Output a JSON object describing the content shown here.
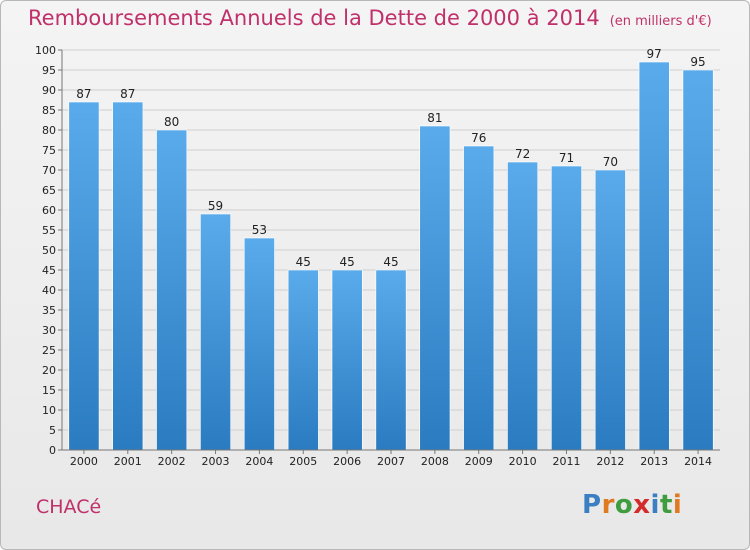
{
  "title": {
    "main": "Remboursements Annuels de la Dette de 2000 à 2014",
    "unit": "(en milliers d'€)"
  },
  "commune": "CHACé",
  "logo": {
    "letters": [
      "P",
      "r",
      "o",
      "x",
      "i",
      "t",
      "i"
    ],
    "colors": [
      "#3a7fc4",
      "#e07a20",
      "#3f9c3f",
      "#d42a2a",
      "#3a7fc4",
      "#3f9c3f",
      "#e07a20"
    ]
  },
  "chart_data": {
    "type": "bar",
    "categories": [
      "2000",
      "2001",
      "2002",
      "2003",
      "2004",
      "2005",
      "2006",
      "2007",
      "2008",
      "2009",
      "2010",
      "2011",
      "2012",
      "2013",
      "2014"
    ],
    "values": [
      87,
      87,
      80,
      59,
      53,
      45,
      45,
      45,
      81,
      76,
      72,
      71,
      70,
      97,
      95
    ],
    "ylim": [
      0,
      100
    ],
    "ytick_step": 5,
    "grid": true,
    "bar_color": "#3b8fd8"
  }
}
